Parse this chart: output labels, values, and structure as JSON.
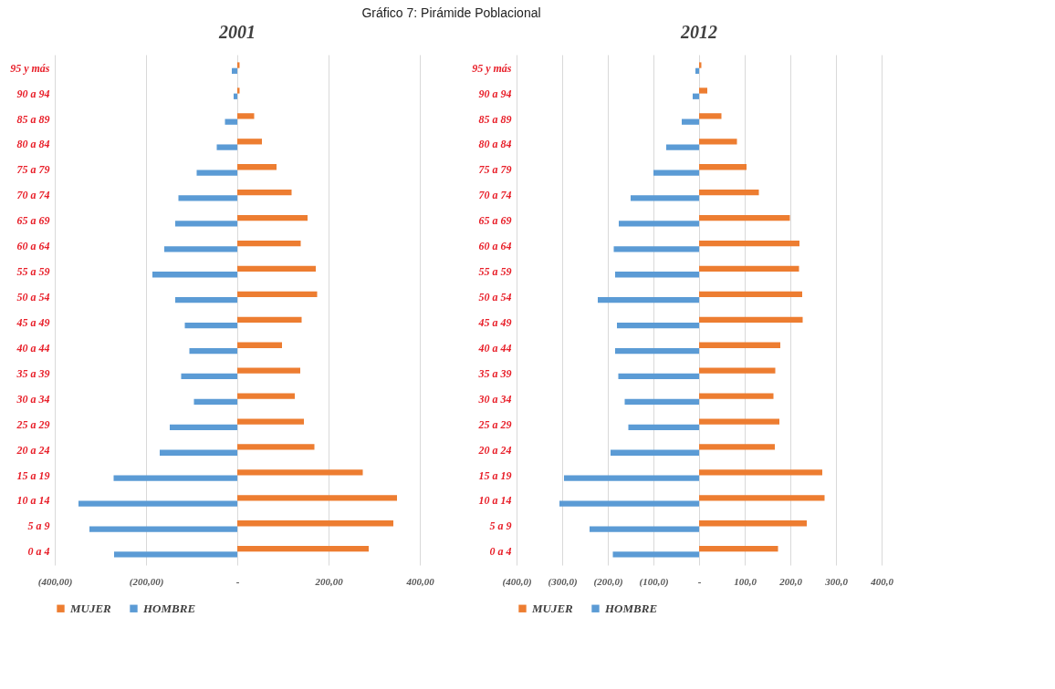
{
  "chart_data": [
    {
      "type": "bar",
      "orientation": "horizontal",
      "title": "2001",
      "annotations": [
        "Gráfico 7: Pirámide Poblacional"
      ],
      "categories": [
        "95 y más",
        "90 a 94",
        "85 a 89",
        "80 a 84",
        "75 a 79",
        "70 a 74",
        "65 a 69",
        "60 a 64",
        "55 a 59",
        "50 a 54",
        "45 a 49",
        "40 a 44",
        "35 a 39",
        "30 a 34",
        "25 a 29",
        "20 a 24",
        "15 a 19",
        "10 a 14",
        "5 a 9",
        "0 a 4"
      ],
      "series": [
        {
          "name": "MUJER",
          "color": "#ed7d31",
          "values": [
            5,
            5,
            37,
            54,
            86,
            119,
            154,
            139,
            172,
            175,
            141,
            98,
            138,
            126,
            146,
            169,
            275,
            350,
            342,
            288
          ]
        },
        {
          "name": "HOMBRE",
          "color": "#5b9bd5",
          "values": [
            -12,
            -8,
            -27,
            -45,
            -89,
            -129,
            -136,
            -160,
            -186,
            -136,
            -115,
            -105,
            -123,
            -95,
            -148,
            -170,
            -271,
            -348,
            -324,
            -270
          ]
        }
      ],
      "xlim": [
        -400,
        400
      ],
      "xticks": [
        {
          "value": -400,
          "label": "(400,00)"
        },
        {
          "value": -200,
          "label": "(200,00)"
        },
        {
          "value": 0,
          "label": "-"
        },
        {
          "value": 200,
          "label": "200,00"
        },
        {
          "value": 400,
          "label": "400,00"
        }
      ],
      "grid": "x",
      "legend": "bottom"
    },
    {
      "type": "bar",
      "orientation": "horizontal",
      "title": "2012",
      "categories": [
        "95 y más",
        "90 a 94",
        "85 a 89",
        "80 a 84",
        "75 a 79",
        "70 a 74",
        "65 a 69",
        "60 a 64",
        "55 a 59",
        "50 a 54",
        "45 a 49",
        "40 a 44",
        "35 a 39",
        "30 a 34",
        "25 a 29",
        "20 a 24",
        "15 a 19",
        "10 a 14",
        "5 a 9",
        "0 a 4"
      ],
      "series": [
        {
          "name": "MUJER",
          "color": "#ed7d31",
          "values": [
            5,
            18,
            49,
            83,
            104,
            131,
            199,
            220,
            219,
            226,
            227,
            178,
            167,
            163,
            176,
            166,
            270,
            275,
            236,
            173
          ]
        },
        {
          "name": "HOMBRE",
          "color": "#5b9bd5",
          "values": [
            -8,
            -14,
            -38,
            -72,
            -100,
            -150,
            -176,
            -187,
            -184,
            -222,
            -180,
            -184,
            -177,
            -163,
            -155,
            -194,
            -296,
            -306,
            -240,
            -189
          ]
        }
      ],
      "xlim": [
        -400,
        400
      ],
      "xticks": [
        {
          "value": -400,
          "label": "(400,0)"
        },
        {
          "value": -300,
          "label": "(300,0)"
        },
        {
          "value": -200,
          "label": "(200,0)"
        },
        {
          "value": -100,
          "label": "(100,0)"
        },
        {
          "value": 0,
          "label": "-"
        },
        {
          "value": 100,
          "label": "100,0"
        },
        {
          "value": 200,
          "label": "200,0"
        },
        {
          "value": 300,
          "label": "300,0"
        },
        {
          "value": 400,
          "label": "400,0"
        }
      ],
      "grid": "x",
      "legend": "bottom"
    }
  ]
}
